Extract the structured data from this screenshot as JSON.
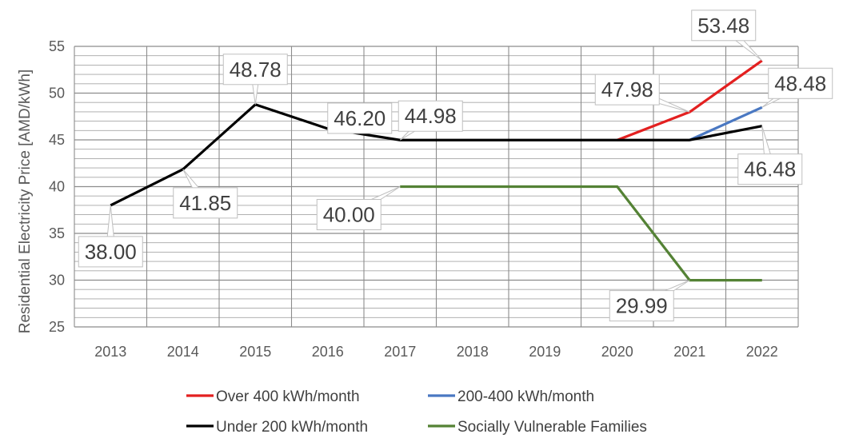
{
  "chart_data": {
    "type": "line",
    "title": "",
    "xlabel": "",
    "ylabel": "Residential Electricity Price [AMD/kWh]",
    "categories": [
      "2013",
      "2014",
      "2015",
      "2016",
      "2017",
      "2018",
      "2019",
      "2020",
      "2021",
      "2022"
    ],
    "ylim": [
      25,
      55
    ],
    "yticks": [
      "25",
      "30",
      "35",
      "40",
      "45",
      "50",
      "55"
    ],
    "grid": true,
    "legend_position": "bottom",
    "series": [
      {
        "name": "Over 400 kWh/month",
        "color": "#e32020",
        "values": [
          null,
          null,
          null,
          null,
          null,
          null,
          null,
          44.98,
          47.98,
          53.48
        ]
      },
      {
        "name": "200-400 kWh/month",
        "color": "#4a78c2",
        "values": [
          null,
          null,
          null,
          null,
          null,
          null,
          null,
          null,
          44.98,
          48.48
        ]
      },
      {
        "name": "Under 200 kWh/month",
        "color": "#000000",
        "values": [
          38.0,
          41.85,
          48.78,
          46.2,
          44.98,
          44.98,
          44.98,
          44.98,
          44.98,
          46.48
        ]
      },
      {
        "name": "Socially Vulnerable Families",
        "color": "#548235",
        "values": [
          null,
          null,
          null,
          null,
          40.0,
          40.0,
          40.0,
          40.0,
          29.99,
          29.99
        ]
      }
    ],
    "annotations": [
      {
        "text": "38.00",
        "x": "2013",
        "y": 38.0,
        "placement": "below"
      },
      {
        "text": "41.85",
        "x": "2014",
        "y": 41.85,
        "placement": "below-right"
      },
      {
        "text": "48.78",
        "x": "2015",
        "y": 48.78,
        "placement": "above"
      },
      {
        "text": "46.20",
        "x": "2016",
        "y": 46.2,
        "placement": "above-right"
      },
      {
        "text": "44.98",
        "x": "2017",
        "y": 44.98,
        "placement": "above-right"
      },
      {
        "text": "40.00",
        "x": "2017",
        "y": 40.0,
        "placement": "below-left"
      },
      {
        "text": "47.98",
        "x": "2021",
        "y": 47.98,
        "placement": "above-left"
      },
      {
        "text": "53.48",
        "x": "2022",
        "y": 53.48,
        "placement": "above-left"
      },
      {
        "text": "48.48",
        "x": "2022",
        "y": 48.48,
        "placement": "above-right"
      },
      {
        "text": "46.48",
        "x": "2022",
        "y": 46.48,
        "placement": "below"
      },
      {
        "text": "29.99",
        "x": "2021",
        "y": 29.99,
        "placement": "below-left"
      }
    ]
  }
}
